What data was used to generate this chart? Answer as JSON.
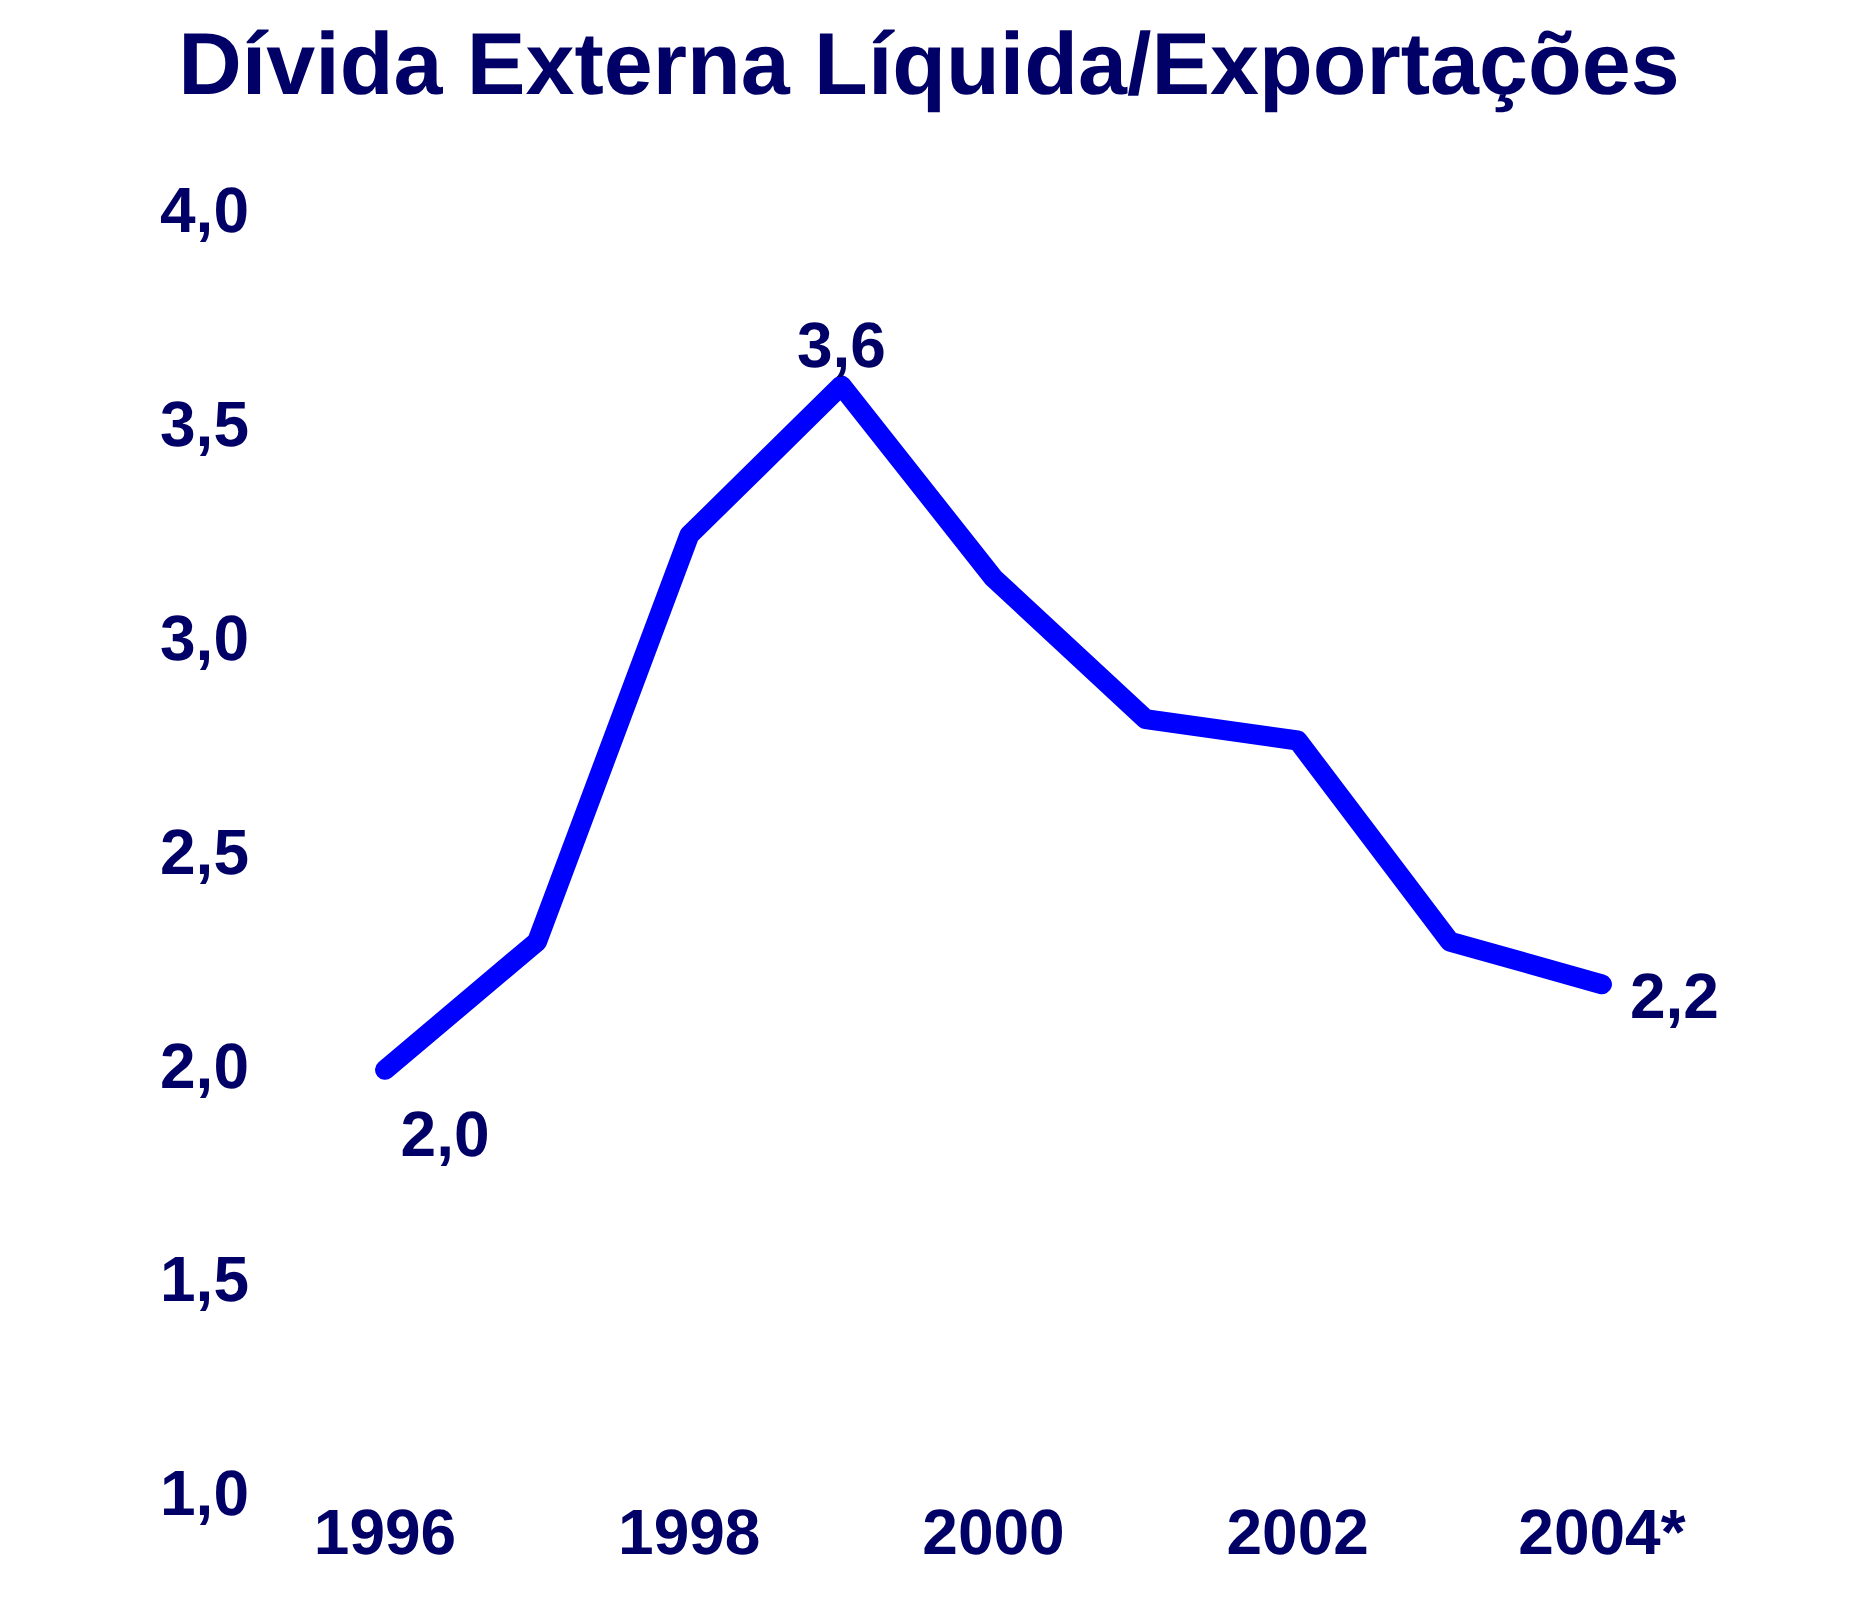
{
  "chart_data": {
    "type": "line",
    "title": "Dívida Externa Líquida/Exportações",
    "categories": [
      "1996",
      null,
      "1998",
      null,
      "2000",
      null,
      "2002",
      null,
      "2004*"
    ],
    "series": [
      {
        "color": "#0000ff",
        "values": [
          2.0,
          2.3,
          3.25,
          3.6,
          3.15,
          2.82,
          2.77,
          2.3,
          2.2
        ],
        "value_labels": [
          "2,0",
          null,
          null,
          "3,6",
          null,
          null,
          null,
          null,
          "2,2"
        ]
      }
    ],
    "ylim": [
      1,
      4
    ],
    "yticks": [
      {
        "value": 1,
        "label": "1,0"
      },
      {
        "value": 1.5,
        "label": "1,5"
      },
      {
        "value": 2,
        "label": "2,0"
      },
      {
        "value": 2.5,
        "label": "2,5"
      },
      {
        "value": 3,
        "label": "3,0"
      },
      {
        "value": 3.5,
        "label": "3,5"
      },
      {
        "value": 4,
        "label": "4,0"
      }
    ],
    "grid": false,
    "legend": false,
    "marker": "none",
    "line_style": "solid"
  }
}
